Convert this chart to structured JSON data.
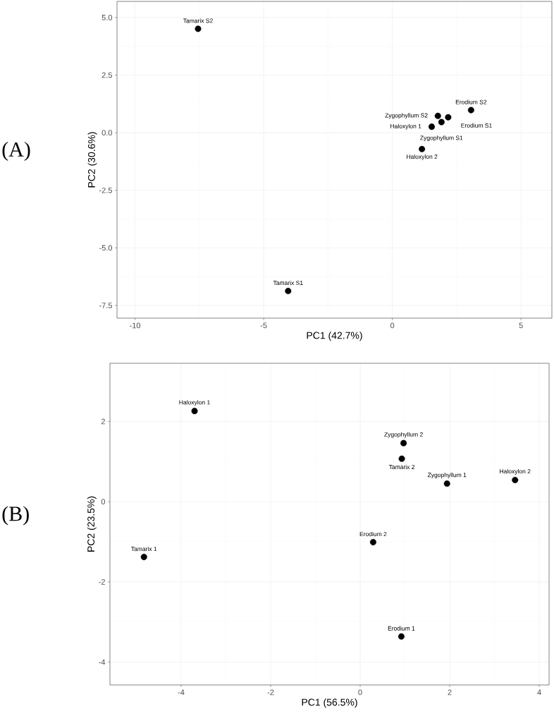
{
  "chart_data": [
    {
      "type": "scatter",
      "xlabel": "PC1 (42.7%)",
      "ylabel": "PC2 (30.6%)",
      "xlim": [
        -10.7,
        6.2
      ],
      "ylim": [
        -8.05,
        5.7
      ],
      "xticks": [
        -10,
        -5,
        0,
        5
      ],
      "yticks": [
        {
          "value": -7.5,
          "label": "-7.5"
        },
        {
          "value": -5,
          "label": "-5.0"
        },
        {
          "value": -2.5,
          "label": "-2.5"
        },
        {
          "value": 0,
          "label": "0.0"
        },
        {
          "value": 2.5,
          "label": "2.5"
        },
        {
          "value": 5,
          "label": "5.0"
        }
      ],
      "grid": true,
      "marker": "circle",
      "series": [
        {
          "color": "#000000",
          "x": [
            -7.55,
            -4.05,
            3.06,
            2.17,
            1.77,
            1.91,
            1.53,
            1.15
          ],
          "values": [
            4.51,
            -6.87,
            0.98,
            0.67,
            0.73,
            0.46,
            0.26,
            -0.71
          ]
        }
      ],
      "annotations": [
        "(A)",
        {
          "text": "Tamarix S2",
          "x": -7.55,
          "y": 4.51
        },
        {
          "text": "Tamarix S1",
          "x": -4.05,
          "y": -6.87
        },
        {
          "text": "Erodium S2",
          "x": 3.06,
          "y": 0.98
        },
        {
          "text": "Erodium S1",
          "x": 2.17,
          "y": 0.67
        },
        {
          "text": "Zygophyllum S2",
          "x": 1.77,
          "y": 0.73
        },
        {
          "text": "Zygophyllum S1",
          "x": 1.91,
          "y": 0.46
        },
        {
          "text": "Haloxylon 1",
          "x": 1.53,
          "y": 0.26
        },
        {
          "text": "Haloxylon 2",
          "x": 1.15,
          "y": -0.71
        }
      ]
    },
    {
      "type": "scatter",
      "xlabel": "PC1 (56.5%)",
      "ylabel": "PC2 (23.5%)",
      "xlim": [
        -5.59,
        4.22
      ],
      "ylim": [
        -4.57,
        3.45
      ],
      "xticks": [
        -4,
        -2,
        0,
        2,
        4
      ],
      "yticks": [
        -4,
        -2,
        0,
        2
      ],
      "grid": true,
      "marker": "circle",
      "series": [
        {
          "color": "#000000",
          "x": [
            -3.7,
            0.97,
            0.93,
            1.94,
            3.46,
            0.29,
            -4.83,
            0.92
          ],
          "values": [
            2.26,
            1.46,
            1.07,
            0.45,
            0.54,
            -1.01,
            -1.38,
            -3.36
          ]
        }
      ],
      "annotations": [
        "(B)",
        {
          "text": "Haloxylon 1",
          "x": -3.7,
          "y": 2.26
        },
        {
          "text": "Zygophyllum 2",
          "x": 0.97,
          "y": 1.46
        },
        {
          "text": "Tamarix 2",
          "x": 0.93,
          "y": 1.07
        },
        {
          "text": "Zygophyllum 1",
          "x": 1.94,
          "y": 0.45
        },
        {
          "text": "Haloxylon 2",
          "x": 3.46,
          "y": 0.54
        },
        {
          "text": "Erodium 2",
          "x": 0.29,
          "y": -1.01
        },
        {
          "text": "Tamarix 1",
          "x": -4.83,
          "y": -1.38
        },
        {
          "text": "Erodium 1",
          "x": 0.92,
          "y": -3.36
        }
      ]
    }
  ]
}
